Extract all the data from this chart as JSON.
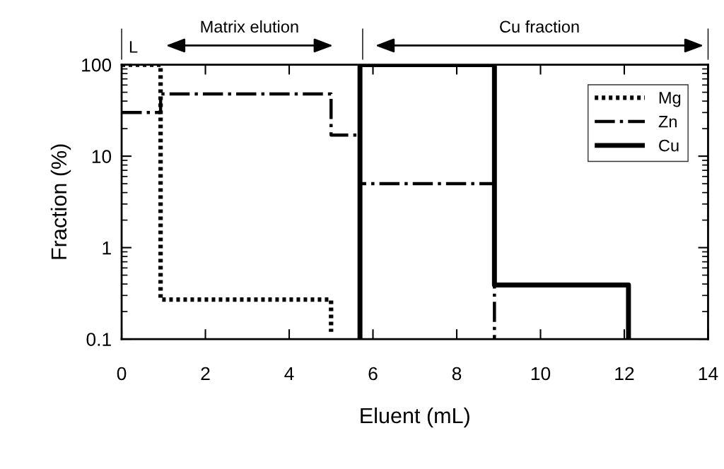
{
  "chart_data": {
    "type": "step",
    "xlabel": "Eluent (mL)",
    "ylabel": "Fraction (%)",
    "xlim": [
      0,
      14
    ],
    "xticks": [
      0,
      2,
      4,
      6,
      8,
      10,
      12,
      14
    ],
    "ylim": [
      0.1,
      100
    ],
    "yticks": [
      0.1,
      1,
      10,
      100
    ],
    "log": "y",
    "grid": false,
    "legend": "top right",
    "series": [
      {
        "name": "Mg",
        "color": "#000000",
        "line_style": "dotted",
        "x": [
          0,
          0.93,
          5.0
        ],
        "values": [
          100,
          0.27,
          0.12
        ]
      },
      {
        "name": "Zn",
        "color": "#000000",
        "line_style": "dashdot",
        "x": [
          0,
          0.93,
          5.0,
          5.69,
          8.9
        ],
        "values": [
          30,
          48,
          17,
          5,
          0.1
        ]
      },
      {
        "name": "Cu",
        "color": "#000000",
        "line_style": "solid",
        "x": [
          5.69,
          5.69,
          8.9,
          12.1
        ],
        "values": [
          0.1,
          100,
          0.39,
          0.1
        ]
      }
    ],
    "annotations": [
      "L",
      "Matrix elution",
      "Cu fraction"
    ]
  }
}
